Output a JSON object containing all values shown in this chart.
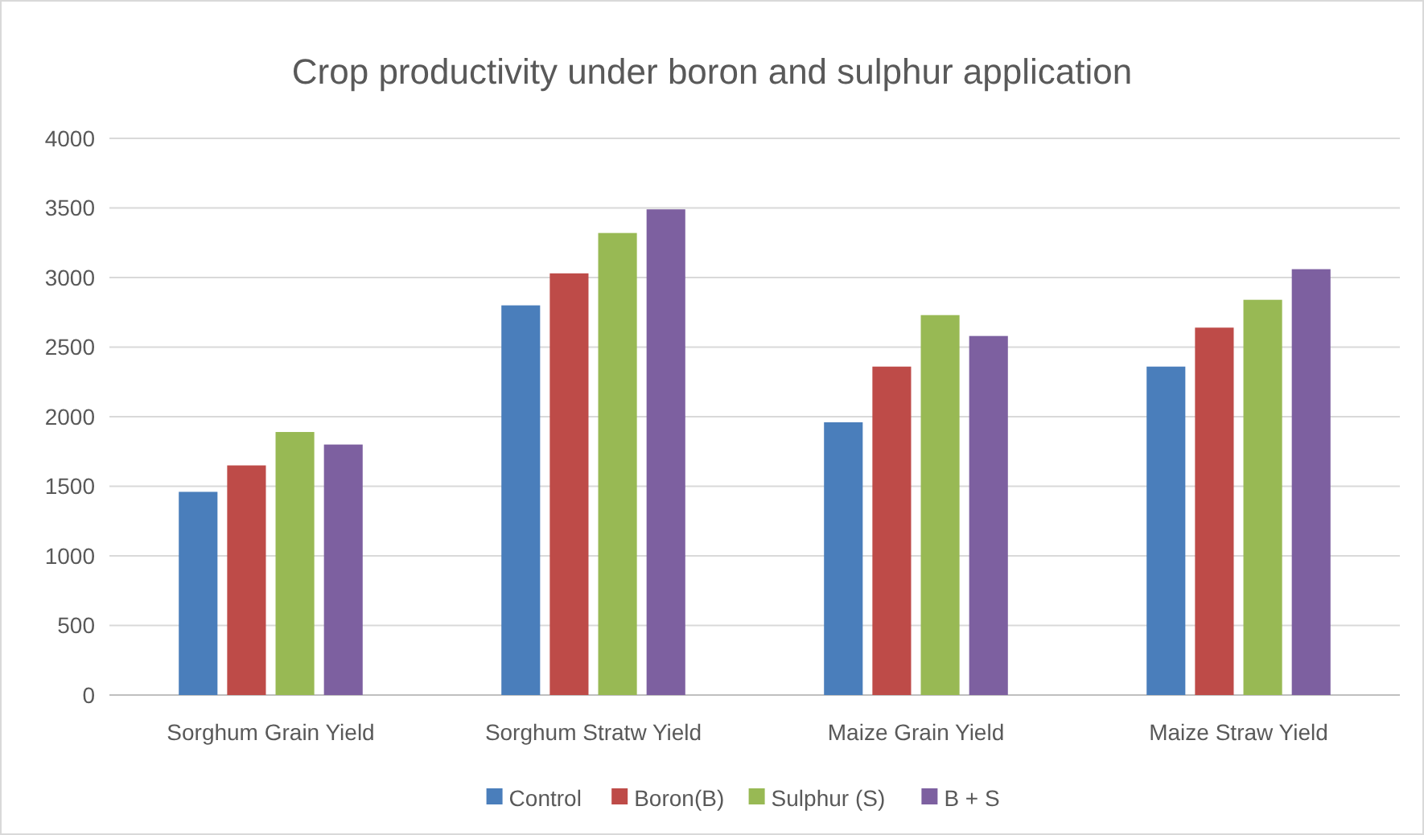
{
  "chart_data": {
    "type": "bar",
    "title": "Crop productivity under boron and sulphur application",
    "categories": [
      "Sorghum Grain Yield",
      "Sorghum Stratw Yield",
      "Maize Grain Yield",
      "Maize Straw Yield"
    ],
    "series": [
      {
        "name": "Control",
        "color": "#4a7ebb",
        "values": [
          1460,
          2800,
          1960,
          2360
        ]
      },
      {
        "name": "Boron(B)",
        "color": "#be4b48",
        "values": [
          1650,
          3030,
          2360,
          2640
        ]
      },
      {
        "name": "Sulphur (S)",
        "color": "#98b954",
        "values": [
          1890,
          3320,
          2730,
          2840
        ]
      },
      {
        "name": "B + S",
        "color": "#7d60a0",
        "values": [
          1800,
          3490,
          2580,
          3060
        ]
      }
    ],
    "ylim": [
      0,
      4000
    ],
    "yticks": [
      0,
      500,
      1000,
      1500,
      2000,
      2500,
      3000,
      3500,
      4000
    ],
    "grid": "y",
    "legend": "bottom"
  }
}
